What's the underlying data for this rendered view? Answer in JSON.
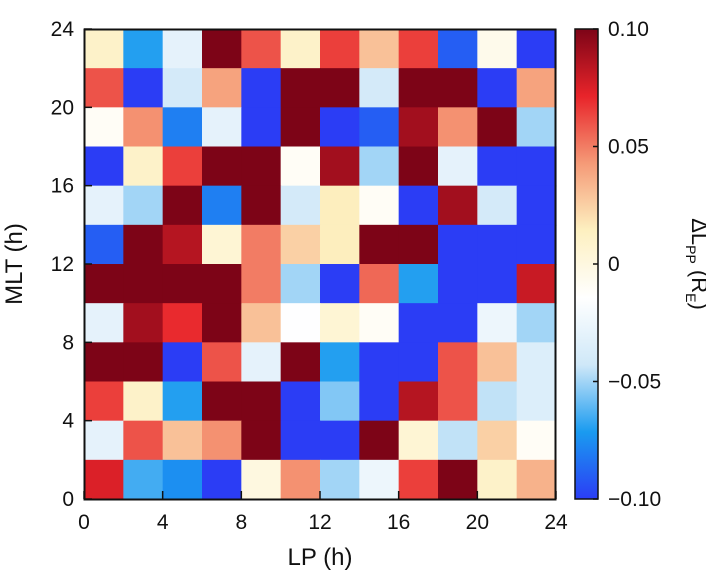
{
  "chart_data": {
    "type": "heatmap",
    "xlabel": "LP (h)",
    "ylabel": "MLT (h)",
    "x_ticks": [
      "0",
      "4",
      "8",
      "12",
      "16",
      "20",
      "24"
    ],
    "y_ticks": [
      "0",
      "4",
      "8",
      "12",
      "16",
      "20",
      "24"
    ],
    "xlim": [
      0,
      24
    ],
    "ylim": [
      0,
      24
    ],
    "cell_size_h": 2,
    "colorbar": {
      "label_main": "ΔL",
      "label_sub": "PP",
      "label_unit": " (R",
      "label_unit_sub": "E",
      "label_close": ")",
      "range": [
        -0.1,
        0.1
      ],
      "ticks": [
        {
          "value": 0.1,
          "label": "0.10"
        },
        {
          "value": 0.05,
          "label": "0.05"
        },
        {
          "value": 0.0,
          "label": "0"
        },
        {
          "value": -0.05,
          "label": "−0.05"
        },
        {
          "value": -0.1,
          "label": "−0.10"
        }
      ],
      "colormap": [
        "#2b3df5",
        "#1a9bf0",
        "#cfe8f8",
        "#ffffff",
        "#fdf0c0",
        "#f59a77",
        "#e8242a",
        "#7d0417"
      ]
    },
    "rows_top_to_bottom": [
      [
        0.01,
        -0.07,
        -0.03,
        0.1,
        0.06,
        0.01,
        0.065,
        0.03,
        0.065,
        -0.09,
        -0.005,
        -0.1
      ],
      [
        0.06,
        -0.1,
        -0.04,
        0.04,
        -0.1,
        0.1,
        0.1,
        -0.04,
        0.1,
        0.1,
        -0.1,
        0.04
      ],
      [
        -0.01,
        0.045,
        -0.08,
        -0.03,
        -0.1,
        0.1,
        -0.1,
        -0.09,
        0.09,
        0.045,
        0.1,
        -0.05
      ],
      [
        -0.1,
        0.01,
        0.065,
        0.1,
        0.1,
        -0.01,
        0.09,
        -0.05,
        0.1,
        -0.03,
        -0.1,
        -0.1
      ],
      [
        -0.03,
        -0.05,
        0.1,
        -0.08,
        0.1,
        -0.04,
        0.015,
        -0.01,
        -0.1,
        0.09,
        -0.04,
        -0.1
      ],
      [
        -0.09,
        0.1,
        0.085,
        0.005,
        0.05,
        0.025,
        0.015,
        0.1,
        0.1,
        -0.1,
        -0.1,
        -0.1
      ],
      [
        0.1,
        0.1,
        0.1,
        0.1,
        0.05,
        -0.05,
        -0.1,
        0.055,
        -0.07,
        -0.1,
        -0.1,
        0.08
      ],
      [
        -0.03,
        0.09,
        0.07,
        0.1,
        0.03,
        -0.015,
        0.005,
        -0.01,
        -0.1,
        -0.1,
        -0.025,
        -0.05
      ],
      [
        0.1,
        0.1,
        -0.1,
        0.06,
        -0.03,
        0.1,
        -0.07,
        -0.1,
        -0.1,
        0.06,
        0.03,
        -0.035
      ],
      [
        0.065,
        0.01,
        -0.07,
        0.1,
        0.1,
        -0.1,
        -0.055,
        -0.1,
        0.085,
        0.06,
        -0.045,
        -0.035
      ],
      [
        -0.03,
        0.06,
        0.03,
        0.045,
        0.1,
        -0.1,
        -0.1,
        0.1,
        0.005,
        -0.045,
        0.025,
        -0.01
      ],
      [
        0.075,
        -0.065,
        -0.075,
        -0.1,
        0.0,
        0.045,
        -0.05,
        -0.025,
        0.065,
        0.1,
        0.01,
        0.035
      ]
    ]
  }
}
